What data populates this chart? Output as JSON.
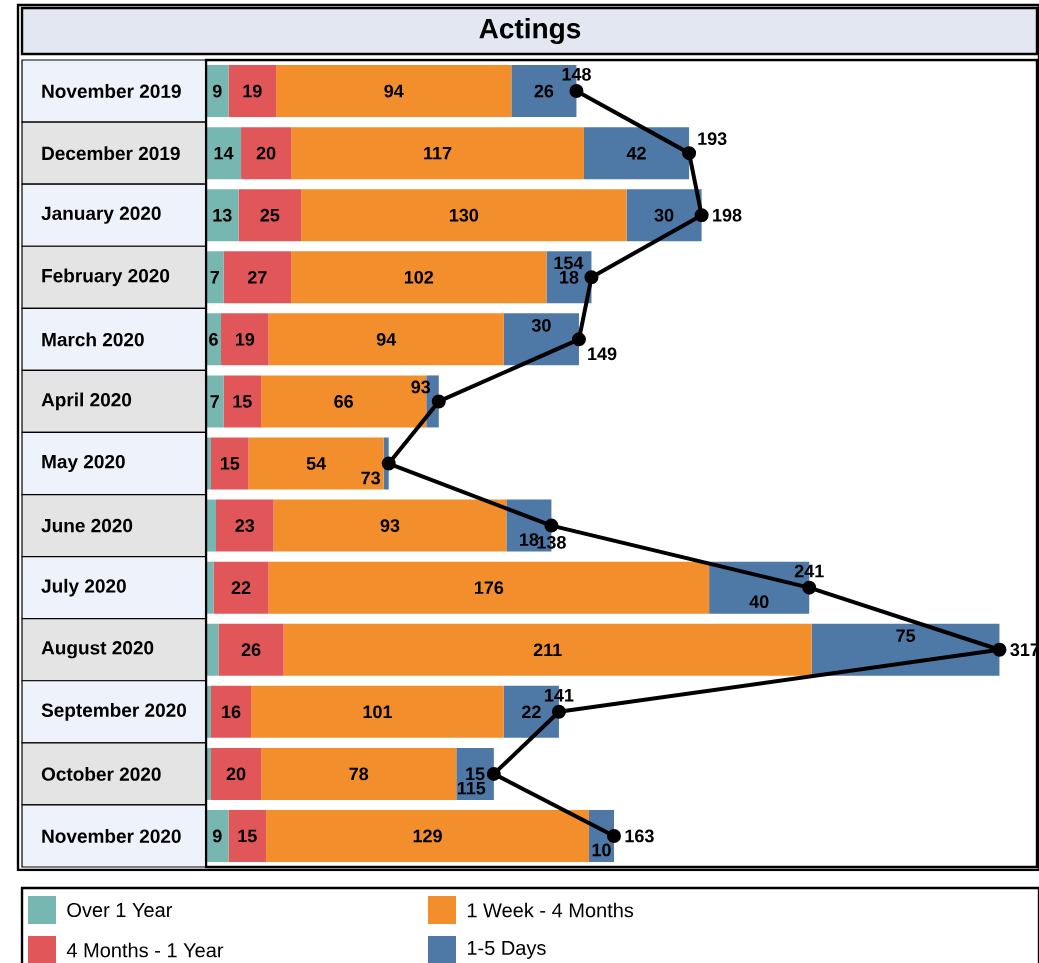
{
  "chart_data": {
    "type": "bar",
    "orientation": "horizontal",
    "stacked": true,
    "title": "Actings",
    "categories": [
      "November 2019",
      "December 2019",
      "January 2020",
      "February 2020",
      "March 2020",
      "April 2020",
      "May 2020",
      "June 2020",
      "July 2020",
      "August 2020",
      "September 2020",
      "October 2020",
      "November 2020"
    ],
    "series": [
      {
        "name": "Over 1 Year",
        "color": "#76b7b2",
        "values": [
          9,
          14,
          13,
          7,
          6,
          7,
          2,
          4,
          3,
          5,
          2,
          2,
          9
        ],
        "value_labels": [
          "9",
          "14",
          "13",
          "7",
          "6",
          "7",
          null,
          null,
          null,
          null,
          null,
          null,
          "9"
        ]
      },
      {
        "name": "4 Months - 1 Year",
        "color": "#e15759",
        "values": [
          19,
          20,
          25,
          27,
          19,
          15,
          15,
          23,
          22,
          26,
          16,
          20,
          15
        ],
        "value_labels": [
          "19",
          "20",
          "25",
          "27",
          "19",
          "15",
          "15",
          "23",
          "22",
          "26",
          "16",
          "20",
          "15"
        ]
      },
      {
        "name": "1 Week - 4 Months",
        "color": "#f28e2b",
        "values": [
          94,
          117,
          130,
          102,
          94,
          66,
          54,
          93,
          176,
          211,
          101,
          78,
          129
        ],
        "value_labels": [
          "94",
          "117",
          "130",
          "102",
          "94",
          "66",
          "54",
          "93",
          "176",
          "211",
          "101",
          "78",
          "129"
        ]
      },
      {
        "name": "1-5 Days",
        "color": "#4e79a7",
        "values": [
          26,
          42,
          30,
          18,
          30,
          5,
          2,
          18,
          40,
          75,
          22,
          15,
          10
        ],
        "value_labels": [
          "26",
          "42",
          "30",
          "18",
          "30",
          null,
          null,
          "18",
          "40",
          "75",
          "22",
          "15",
          "10"
        ]
      },
      {
        "type": "line",
        "color": "#000000",
        "marker": "circle",
        "line_style": "solid",
        "values": [
          148,
          193,
          198,
          154,
          149,
          93,
          73,
          138,
          241,
          317,
          141,
          115,
          163
        ],
        "value_labels": [
          "148",
          "193",
          "198",
          "154",
          "149",
          "93",
          "73",
          "138",
          "241",
          "317",
          "141",
          "115",
          "163"
        ]
      }
    ],
    "xlim": [
      0,
      332
    ],
    "tick_labels": "y",
    "legend": "bottom",
    "grid": false
  }
}
